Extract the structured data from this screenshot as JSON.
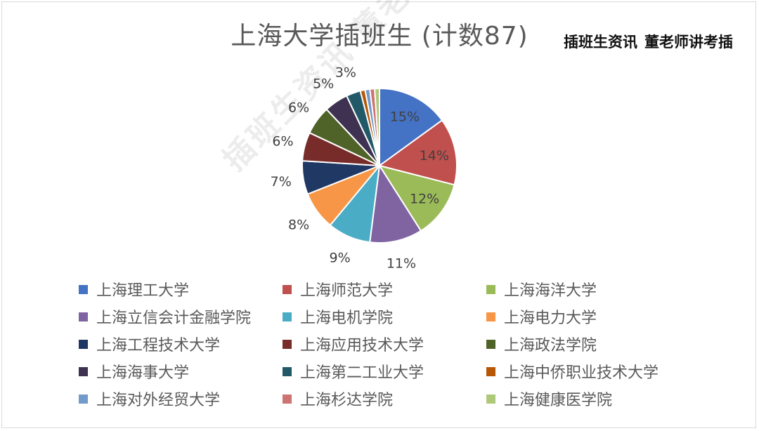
{
  "chart_data": {
    "type": "pie",
    "title": "上海大学插班生 (计数87)",
    "slices": [
      {
        "name": "上海理工大学",
        "value": 15,
        "label": "15%",
        "color": "#4472C4"
      },
      {
        "name": "上海师范大学",
        "value": 14,
        "label": "14%",
        "color": "#C0504D"
      },
      {
        "name": "上海海洋大学",
        "value": 12,
        "label": "12%",
        "color": "#9BBB59"
      },
      {
        "name": "上海立信会计金融学院",
        "value": 11,
        "label": "11%",
        "color": "#8064A2"
      },
      {
        "name": "上海电机学院",
        "value": 9,
        "label": "9%",
        "color": "#4BACC6"
      },
      {
        "name": "上海电力大学",
        "value": 8,
        "label": "8%",
        "color": "#F79646"
      },
      {
        "name": "上海工程技术大学",
        "value": 7,
        "label": "7%",
        "color": "#1F3864"
      },
      {
        "name": "上海应用技术大学",
        "value": 6,
        "label": "6%",
        "color": "#772C2A"
      },
      {
        "name": "上海政法学院",
        "value": 6,
        "label": "6%",
        "color": "#4F6228"
      },
      {
        "name": "上海海事大学",
        "value": 5,
        "label": "5%",
        "color": "#3F3151"
      },
      {
        "name": "上海第二工业大学",
        "value": 3,
        "label": "3%",
        "color": "#215968"
      },
      {
        "name": "上海中侨职业技术大学",
        "value": 1,
        "label": "",
        "color": "#B65708"
      },
      {
        "name": "上海对外经贸大学",
        "value": 1,
        "label": "",
        "color": "#729ACA"
      },
      {
        "name": "上海杉达学院",
        "value": 1,
        "label": "",
        "color": "#CD7371"
      },
      {
        "name": "上海健康医学院",
        "value": 1,
        "label": "",
        "color": "#AFC97A"
      }
    ],
    "legend_position": "bottom"
  },
  "brand": {
    "part1": "插班生资讯",
    "part2": "董老师讲考插"
  },
  "watermark": "插班生资讯 董老师讲考插"
}
